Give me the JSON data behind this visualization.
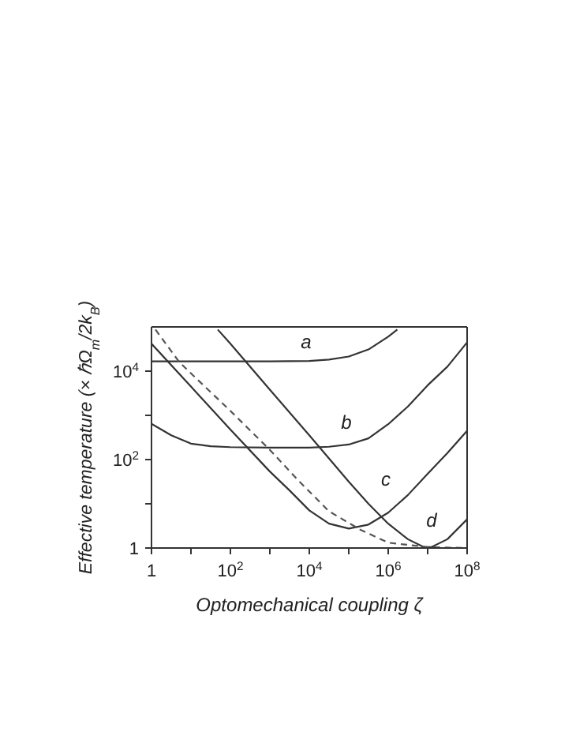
{
  "chart_data": {
    "type": "line",
    "xlabel": "Optomechanical coupling ζ",
    "ylabel": "Effective temperature (× ℏΩ$_{m}$/2k$_{B}$)",
    "log": "xy",
    "legend": false,
    "marker": "none",
    "xlim": [
      1,
      100000000
    ],
    "ylim": [
      1,
      100000
    ],
    "xticks": [
      1,
      {
        "value": 10,
        "label": null
      },
      {
        "value": 100,
        "label": "10$^{2}$"
      },
      {
        "value": 1000,
        "label": null
      },
      {
        "value": 10000,
        "label": "10$^{4}$"
      },
      {
        "value": 100000,
        "label": null
      },
      {
        "value": 1000000,
        "label": "10$^{6}$"
      },
      {
        "value": 10000000,
        "label": null
      },
      {
        "value": 100000000,
        "label": "10$^{8}$"
      }
    ],
    "yticks": [
      1,
      {
        "value": 10,
        "label": null
      },
      {
        "value": 100,
        "label": "10$^{2}$"
      },
      {
        "value": 1000,
        "label": null
      },
      {
        "value": 10000,
        "label": "10$^{4}$"
      }
    ],
    "series": [
      {
        "name": "a",
        "color": "#333333",
        "line_style": "solid",
        "x": [
          1,
          10,
          100,
          1000,
          10000,
          31623,
          100000,
          316228,
          1000000,
          1700000
        ],
        "values": [
          16600,
          16600,
          16600,
          16600,
          17000,
          18200,
          21400,
          30900,
          60300,
          87100
        ]
      },
      {
        "name": "b",
        "color": "#333333",
        "line_style": "solid",
        "x": [
          1,
          3.16,
          10,
          31.6,
          100,
          1000,
          10000,
          31623,
          100000,
          316228,
          1000000,
          3160000,
          10000000,
          31600000,
          100000000
        ],
        "values": [
          646,
          355,
          229,
          200,
          191,
          186,
          186,
          195,
          219,
          302,
          631,
          1585,
          4786,
          12590,
          44670
        ]
      },
      {
        "name": "c",
        "color": "#333333",
        "line_style": "solid",
        "x": [
          1,
          10,
          100,
          1000,
          3162,
          10000,
          31623,
          100000,
          316228,
          1000000,
          3160000,
          10000000,
          31600000,
          100000000
        ],
        "values": [
          41690,
          4467,
          479,
          53.7,
          20,
          7.08,
          3.55,
          2.75,
          3.39,
          6.31,
          15.8,
          47.9,
          141,
          447
        ]
      },
      {
        "name": "d",
        "color": "#333333",
        "line_style": "solid",
        "x": [
          47.9,
          100,
          1000,
          10000,
          100000,
          316228,
          1000000,
          3160000,
          7940000,
          12600000,
          31600000,
          100000000
        ],
        "values": [
          87100,
          41690,
          3802,
          355,
          31.6,
          10,
          3.55,
          1.58,
          1.05,
          1.05,
          1.58,
          4.47
        ]
      },
      {
        "color": "#555555",
        "line_style": "dashed",
        "x": [
          1.26,
          5.01,
          10,
          100,
          1000,
          5370,
          31623,
          200000,
          1000000,
          10000000,
          100000000
        ],
        "values": [
          87100,
          16200,
          8910,
          1259,
          166,
          33.1,
          6.76,
          2.57,
          1.32,
          1.05,
          1
        ]
      }
    ]
  }
}
